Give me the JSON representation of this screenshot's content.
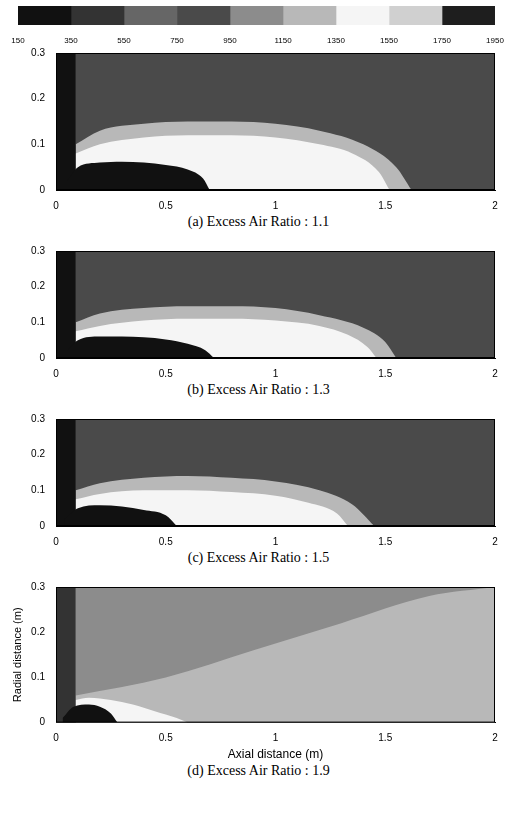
{
  "colorbar": {
    "range": [
      150,
      1950
    ],
    "ticks": [
      150,
      350,
      550,
      750,
      950,
      1150,
      1350,
      1550,
      1750,
      1950
    ],
    "colors": [
      "#111111",
      "#333333",
      "#666666",
      "#4a4a4a",
      "#8c8c8c",
      "#b8b8b8",
      "#f5f5f5",
      "#d0d0d0",
      "#1e1e1e"
    ]
  },
  "chart_data": [
    {
      "type": "contour",
      "title": "(a) Excess Air Ratio : 1.1",
      "xlim": [
        0,
        2
      ],
      "ylim": [
        0,
        0.3
      ],
      "xticks": [
        0,
        0.5,
        1,
        1.5,
        2
      ],
      "yticks": [
        0,
        0.1,
        0.2,
        0.3
      ],
      "grid": false,
      "ground_level": 750,
      "contours": [
        {
          "level": 150,
          "x": [
            0,
            0.09
          ],
          "y": [
            0.3,
            0.3
          ]
        },
        {
          "level": 1150,
          "x": [
            0.09,
            0.2,
            0.4,
            0.6,
            0.8,
            1.0,
            1.2,
            1.4,
            1.55,
            1.62
          ],
          "y": [
            0.1,
            0.13,
            0.145,
            0.15,
            0.15,
            0.145,
            0.13,
            0.1,
            0.05,
            0
          ]
        },
        {
          "level": 1350,
          "x": [
            0.09,
            0.2,
            0.4,
            0.6,
            0.8,
            1.0,
            1.2,
            1.35,
            1.47,
            1.52
          ],
          "y": [
            0.08,
            0.1,
            0.115,
            0.12,
            0.12,
            0.115,
            0.1,
            0.08,
            0.04,
            0
          ]
        },
        {
          "level": 150,
          "x": [
            0.05,
            0.1,
            0.2,
            0.3,
            0.4,
            0.5,
            0.6,
            0.67,
            0.7
          ],
          "y": [
            0.02,
            0.05,
            0.06,
            0.062,
            0.06,
            0.055,
            0.045,
            0.025,
            0
          ]
        }
      ]
    },
    {
      "type": "contour",
      "title": "(b) Excess Air Ratio : 1.3",
      "xlim": [
        0,
        2
      ],
      "ylim": [
        0,
        0.3
      ],
      "xticks": [
        0,
        0.5,
        1,
        1.5,
        2
      ],
      "yticks": [
        0,
        0.1,
        0.2,
        0.3
      ],
      "grid": false,
      "ground_level": 750,
      "contours": [
        {
          "level": 150,
          "x": [
            0,
            0.09
          ],
          "y": [
            0.3,
            0.3
          ]
        },
        {
          "level": 1150,
          "x": [
            0.09,
            0.2,
            0.4,
            0.6,
            0.8,
            1.0,
            1.2,
            1.4,
            1.5,
            1.55
          ],
          "y": [
            0.1,
            0.125,
            0.14,
            0.145,
            0.145,
            0.14,
            0.12,
            0.085,
            0.045,
            0
          ]
        },
        {
          "level": 1350,
          "x": [
            0.09,
            0.2,
            0.4,
            0.6,
            0.8,
            1.0,
            1.2,
            1.33,
            1.42,
            1.46
          ],
          "y": [
            0.075,
            0.09,
            0.105,
            0.11,
            0.11,
            0.105,
            0.09,
            0.065,
            0.03,
            0
          ]
        },
        {
          "level": 150,
          "x": [
            0.05,
            0.1,
            0.2,
            0.3,
            0.4,
            0.5,
            0.6,
            0.68,
            0.72
          ],
          "y": [
            0.02,
            0.05,
            0.06,
            0.06,
            0.058,
            0.052,
            0.04,
            0.022,
            0
          ]
        }
      ]
    },
    {
      "type": "contour",
      "title": "(c) Excess Air Ratio : 1.5",
      "xlim": [
        0,
        2
      ],
      "ylim": [
        0,
        0.3
      ],
      "xticks": [
        0,
        0.5,
        1,
        1.5,
        2
      ],
      "yticks": [
        0,
        0.1,
        0.2,
        0.3
      ],
      "grid": false,
      "ground_level": 750,
      "contours": [
        {
          "level": 150,
          "x": [
            0,
            0.09
          ],
          "y": [
            0.3,
            0.3
          ]
        },
        {
          "level": 1150,
          "x": [
            0.09,
            0.2,
            0.4,
            0.6,
            0.8,
            1.0,
            1.2,
            1.35,
            1.45
          ],
          "y": [
            0.1,
            0.12,
            0.135,
            0.14,
            0.135,
            0.125,
            0.1,
            0.06,
            0
          ]
        },
        {
          "level": 1350,
          "x": [
            0.09,
            0.2,
            0.4,
            0.6,
            0.8,
            1.0,
            1.15,
            1.28,
            1.33
          ],
          "y": [
            0.075,
            0.09,
            0.1,
            0.1,
            0.095,
            0.085,
            0.065,
            0.035,
            0
          ]
        },
        {
          "level": 150,
          "x": [
            0.04,
            0.1,
            0.2,
            0.3,
            0.4,
            0.5,
            0.55
          ],
          "y": [
            0.02,
            0.05,
            0.058,
            0.055,
            0.045,
            0.03,
            0
          ]
        }
      ]
    },
    {
      "type": "contour",
      "title": "(d) Excess Air Ratio : 1.9",
      "xlabel": "Axial distance (m)",
      "ylabel": "Radial distance (m)",
      "xlim": [
        0,
        2
      ],
      "ylim": [
        0,
        0.3
      ],
      "xticks": [
        0,
        0.5,
        1,
        1.5,
        2
      ],
      "yticks": [
        0,
        0.1,
        0.2,
        0.3
      ],
      "grid": false,
      "ground_level": 950,
      "contours": [
        {
          "level": 350,
          "x": [
            0,
            0.09
          ],
          "y": [
            0.3,
            0.3
          ]
        },
        {
          "level": 1150,
          "x": [
            0.09,
            0.5,
            0.9,
            1.3,
            1.7,
            2.0
          ],
          "y": [
            0.06,
            0.1,
            0.16,
            0.22,
            0.28,
            0.3
          ]
        },
        {
          "level": 1350,
          "x": [
            0.09,
            0.15,
            0.25,
            0.35,
            0.45,
            0.55,
            0.6
          ],
          "y": [
            0.05,
            0.055,
            0.05,
            0.04,
            0.025,
            0.01,
            0
          ]
        },
        {
          "level": 150,
          "x": [
            0.03,
            0.08,
            0.15,
            0.2,
            0.25,
            0.28
          ],
          "y": [
            0.01,
            0.035,
            0.04,
            0.035,
            0.02,
            0
          ]
        }
      ]
    }
  ]
}
